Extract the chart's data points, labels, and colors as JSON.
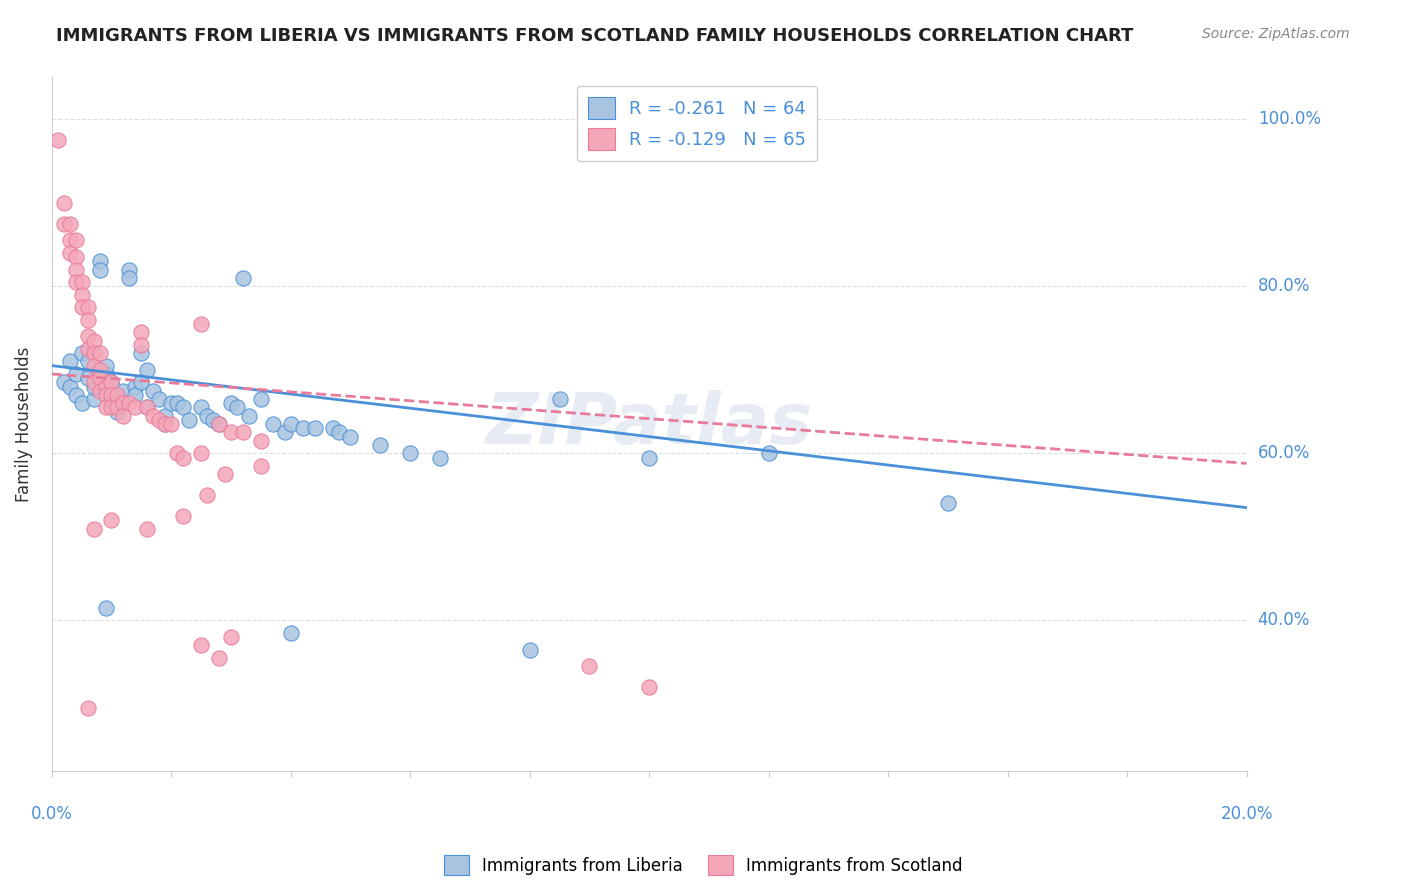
{
  "title": "IMMIGRANTS FROM LIBERIA VS IMMIGRANTS FROM SCOTLAND FAMILY HOUSEHOLDS CORRELATION CHART",
  "source": "Source: ZipAtlas.com",
  "ylabel": "Family Households",
  "y_tick_labels": [
    "100.0%",
    "80.0%",
    "60.0%",
    "40.0%"
  ],
  "y_tick_positions": [
    1.0,
    0.8,
    0.6,
    0.4
  ],
  "x_range": [
    0.0,
    0.2
  ],
  "y_range": [
    0.22,
    1.05
  ],
  "legend1_R": "R = -0.261",
  "legend1_N": "N = 64",
  "legend2_R": "R = -0.129",
  "legend2_N": "N = 65",
  "legend_label1": "Immigrants from Liberia",
  "legend_label2": "Immigrants from Scotland",
  "watermark": "ZIPatlas",
  "blue_color": "#a8c4e0",
  "pink_color": "#f4a7b9",
  "blue_line_color": "#4a90d9",
  "pink_line_color": "#e87a9a",
  "title_color": "#222222",
  "axis_color": "#4a90d9",
  "blue_scatter": [
    [
      0.002,
      0.685
    ],
    [
      0.003,
      0.71
    ],
    [
      0.003,
      0.68
    ],
    [
      0.004,
      0.695
    ],
    [
      0.004,
      0.67
    ],
    [
      0.005,
      0.72
    ],
    [
      0.005,
      0.66
    ],
    [
      0.006,
      0.71
    ],
    [
      0.006,
      0.69
    ],
    [
      0.007,
      0.665
    ],
    [
      0.007,
      0.68
    ],
    [
      0.008,
      0.83
    ],
    [
      0.008,
      0.82
    ],
    [
      0.009,
      0.695
    ],
    [
      0.009,
      0.705
    ],
    [
      0.01,
      0.685
    ],
    [
      0.01,
      0.66
    ],
    [
      0.011,
      0.65
    ],
    [
      0.011,
      0.67
    ],
    [
      0.012,
      0.675
    ],
    [
      0.012,
      0.66
    ],
    [
      0.013,
      0.82
    ],
    [
      0.013,
      0.81
    ],
    [
      0.014,
      0.68
    ],
    [
      0.014,
      0.67
    ],
    [
      0.015,
      0.72
    ],
    [
      0.015,
      0.685
    ],
    [
      0.016,
      0.7
    ],
    [
      0.016,
      0.655
    ],
    [
      0.017,
      0.675
    ],
    [
      0.018,
      0.665
    ],
    [
      0.019,
      0.645
    ],
    [
      0.019,
      0.635
    ],
    [
      0.02,
      0.66
    ],
    [
      0.021,
      0.66
    ],
    [
      0.022,
      0.655
    ],
    [
      0.023,
      0.64
    ],
    [
      0.025,
      0.655
    ],
    [
      0.026,
      0.645
    ],
    [
      0.027,
      0.64
    ],
    [
      0.028,
      0.635
    ],
    [
      0.03,
      0.66
    ],
    [
      0.031,
      0.655
    ],
    [
      0.032,
      0.81
    ],
    [
      0.033,
      0.645
    ],
    [
      0.035,
      0.665
    ],
    [
      0.037,
      0.635
    ],
    [
      0.039,
      0.625
    ],
    [
      0.04,
      0.635
    ],
    [
      0.042,
      0.63
    ],
    [
      0.044,
      0.63
    ],
    [
      0.047,
      0.63
    ],
    [
      0.048,
      0.625
    ],
    [
      0.05,
      0.62
    ],
    [
      0.055,
      0.61
    ],
    [
      0.06,
      0.6
    ],
    [
      0.065,
      0.595
    ],
    [
      0.009,
      0.415
    ],
    [
      0.04,
      0.385
    ],
    [
      0.085,
      0.665
    ],
    [
      0.08,
      0.365
    ],
    [
      0.1,
      0.595
    ],
    [
      0.12,
      0.6
    ],
    [
      0.15,
      0.54
    ]
  ],
  "pink_scatter": [
    [
      0.001,
      0.975
    ],
    [
      0.002,
      0.9
    ],
    [
      0.002,
      0.875
    ],
    [
      0.003,
      0.875
    ],
    [
      0.003,
      0.855
    ],
    [
      0.003,
      0.84
    ],
    [
      0.004,
      0.855
    ],
    [
      0.004,
      0.835
    ],
    [
      0.004,
      0.82
    ],
    [
      0.004,
      0.805
    ],
    [
      0.005,
      0.805
    ],
    [
      0.005,
      0.79
    ],
    [
      0.005,
      0.775
    ],
    [
      0.006,
      0.775
    ],
    [
      0.006,
      0.76
    ],
    [
      0.006,
      0.74
    ],
    [
      0.006,
      0.725
    ],
    [
      0.007,
      0.735
    ],
    [
      0.007,
      0.72
    ],
    [
      0.007,
      0.705
    ],
    [
      0.007,
      0.685
    ],
    [
      0.008,
      0.72
    ],
    [
      0.008,
      0.7
    ],
    [
      0.008,
      0.69
    ],
    [
      0.008,
      0.675
    ],
    [
      0.009,
      0.68
    ],
    [
      0.009,
      0.67
    ],
    [
      0.009,
      0.655
    ],
    [
      0.01,
      0.685
    ],
    [
      0.01,
      0.67
    ],
    [
      0.01,
      0.655
    ],
    [
      0.011,
      0.67
    ],
    [
      0.011,
      0.655
    ],
    [
      0.012,
      0.66
    ],
    [
      0.012,
      0.645
    ],
    [
      0.013,
      0.66
    ],
    [
      0.014,
      0.655
    ],
    [
      0.015,
      0.745
    ],
    [
      0.015,
      0.73
    ],
    [
      0.016,
      0.655
    ],
    [
      0.017,
      0.645
    ],
    [
      0.018,
      0.64
    ],
    [
      0.019,
      0.635
    ],
    [
      0.02,
      0.635
    ],
    [
      0.021,
      0.6
    ],
    [
      0.022,
      0.595
    ],
    [
      0.025,
      0.6
    ],
    [
      0.026,
      0.55
    ],
    [
      0.028,
      0.635
    ],
    [
      0.029,
      0.575
    ],
    [
      0.03,
      0.625
    ],
    [
      0.032,
      0.625
    ],
    [
      0.035,
      0.585
    ],
    [
      0.007,
      0.51
    ],
    [
      0.01,
      0.52
    ],
    [
      0.016,
      0.51
    ],
    [
      0.022,
      0.525
    ],
    [
      0.025,
      0.37
    ],
    [
      0.028,
      0.355
    ],
    [
      0.03,
      0.38
    ],
    [
      0.006,
      0.295
    ],
    [
      0.09,
      0.345
    ],
    [
      0.1,
      0.32
    ],
    [
      0.025,
      0.755
    ],
    [
      0.035,
      0.615
    ]
  ],
  "blue_line_x": [
    0.0,
    0.2
  ],
  "blue_line_y": [
    0.705,
    0.535
  ],
  "pink_line_x": [
    0.0,
    0.2
  ],
  "pink_line_y": [
    0.695,
    0.588
  ],
  "background_color": "#ffffff",
  "grid_color": "#dddddd"
}
